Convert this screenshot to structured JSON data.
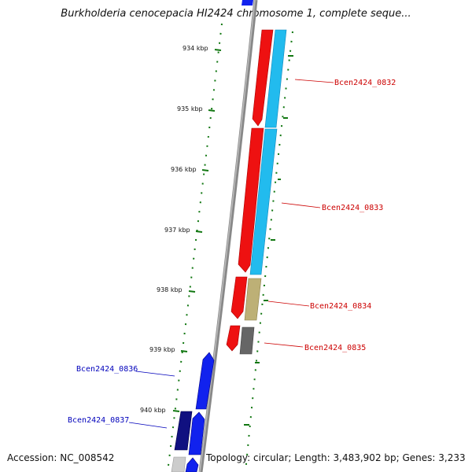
{
  "title": "Burkholderia cenocepacia HI2424 chromosome 1, complete seque...",
  "footer": {
    "accession": "Accession: NC_008542",
    "topology": "Topology: circular; Length: 3,483,902 bp; Genes: 3,233"
  },
  "scale_ticks": [
    "934 kbp",
    "935 kbp",
    "936 kbp",
    "937 kbp",
    "938 kbp",
    "939 kbp",
    "940 kbp"
  ],
  "gene_labels": {
    "forward": [
      "Bcen2424_0832",
      "Bcen2424_0833",
      "Bcen2424_0834",
      "Bcen2424_0835"
    ],
    "reverse": [
      "Bcen2424_0836",
      "Bcen2424_0837"
    ]
  },
  "colors": {
    "forward_label": "#cc0000",
    "reverse_label": "#0000bb",
    "cds_red": "#ee1111",
    "cds_cyan": "#22bbee",
    "cds_khaki": "#bdb076",
    "cds_gray": "#666666",
    "cds_blue": "#1122ee",
    "cds_navy": "#101080",
    "backbone": "#888888",
    "tick_green": "#117711"
  }
}
